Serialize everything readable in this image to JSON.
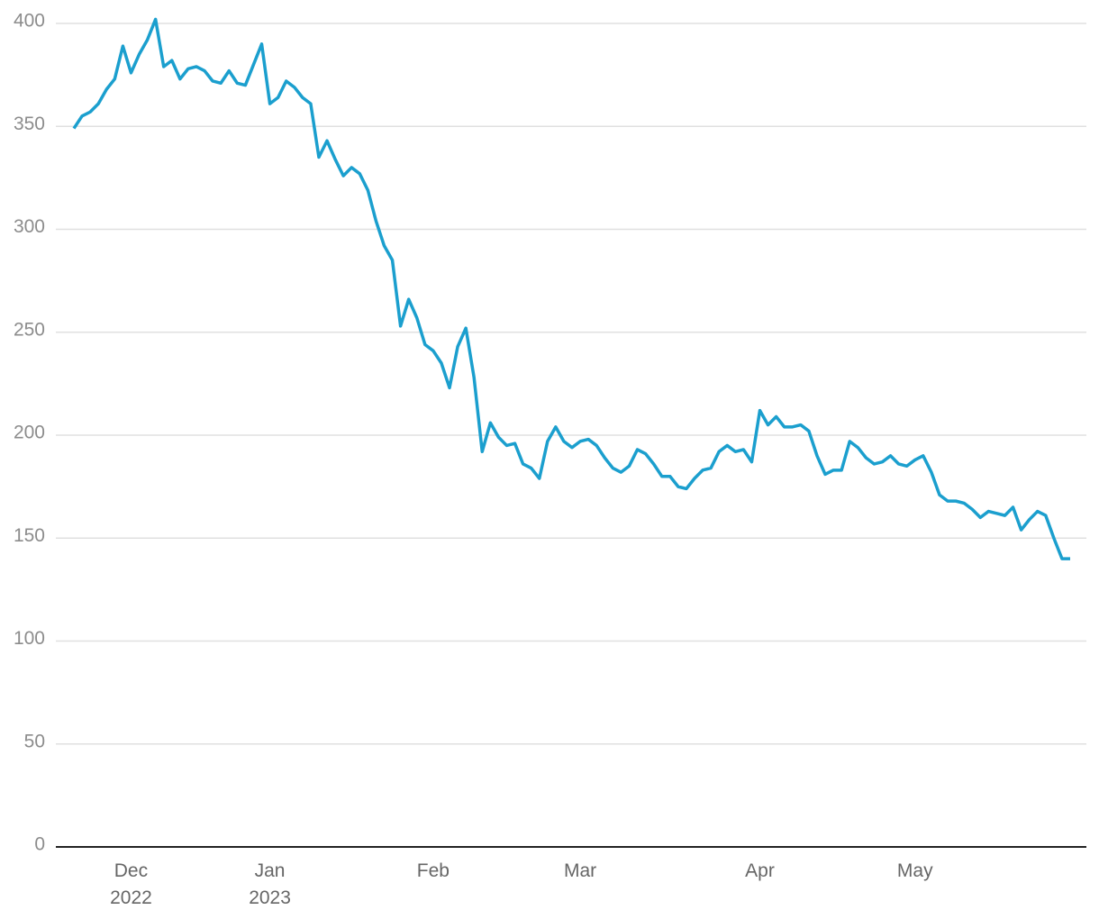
{
  "chart_data": {
    "type": "line",
    "categories": [
      null,
      null,
      null,
      null,
      null,
      null,
      null,
      "Dec\n2022",
      null,
      null,
      null,
      null,
      null,
      null,
      null,
      null,
      null,
      null,
      null,
      null,
      null,
      null,
      null,
      null,
      "Jan\n2023",
      null,
      null,
      null,
      null,
      null,
      null,
      null,
      null,
      null,
      null,
      null,
      null,
      null,
      null,
      null,
      null,
      null,
      null,
      null,
      "Feb",
      null,
      null,
      null,
      null,
      null,
      null,
      null,
      null,
      null,
      null,
      null,
      null,
      null,
      null,
      null,
      null,
      null,
      "Mar",
      null,
      null,
      null,
      null,
      null,
      null,
      null,
      null,
      null,
      null,
      null,
      null,
      null,
      null,
      null,
      null,
      null,
      null,
      null,
      null,
      null,
      "Apr",
      null,
      null,
      null,
      null,
      null,
      null,
      null,
      null,
      null,
      null,
      null,
      null,
      null,
      null,
      null,
      null,
      null,
      null,
      "May",
      null,
      null,
      null,
      null,
      null,
      null,
      null,
      null,
      null,
      null,
      null,
      null,
      null,
      null,
      null,
      null,
      null,
      null,
      null
    ],
    "values": [
      349,
      355,
      357,
      361,
      368,
      373,
      389,
      376,
      385,
      392,
      402,
      379,
      382,
      373,
      378,
      379,
      377,
      372,
      371,
      377,
      371,
      370,
      380,
      390,
      361,
      364,
      372,
      369,
      364,
      361,
      335,
      343,
      334,
      326,
      330,
      327,
      319,
      304,
      292,
      285,
      253,
      266,
      257,
      244,
      241,
      235,
      223,
      243,
      252,
      228,
      192,
      206,
      199,
      195,
      196,
      186,
      184,
      179,
      197,
      204,
      197,
      194,
      197,
      198,
      195,
      189,
      184,
      182,
      185,
      193,
      191,
      186,
      180,
      180,
      175,
      174,
      179,
      183,
      184,
      192,
      195,
      192,
      193,
      187,
      212,
      205,
      209,
      204,
      204,
      205,
      202,
      190,
      181,
      183,
      183,
      197,
      194,
      189,
      186,
      187,
      190,
      186,
      185,
      188,
      190,
      182,
      171,
      168,
      168,
      167,
      164,
      160,
      163,
      162,
      161,
      165,
      154,
      159,
      163,
      161,
      150,
      140,
      140
    ],
    "color": "#1b9fce",
    "ylim": [
      0,
      400
    ],
    "yticks": [
      0,
      50,
      100,
      150,
      200,
      250,
      300,
      350,
      400
    ],
    "grid": true
  }
}
